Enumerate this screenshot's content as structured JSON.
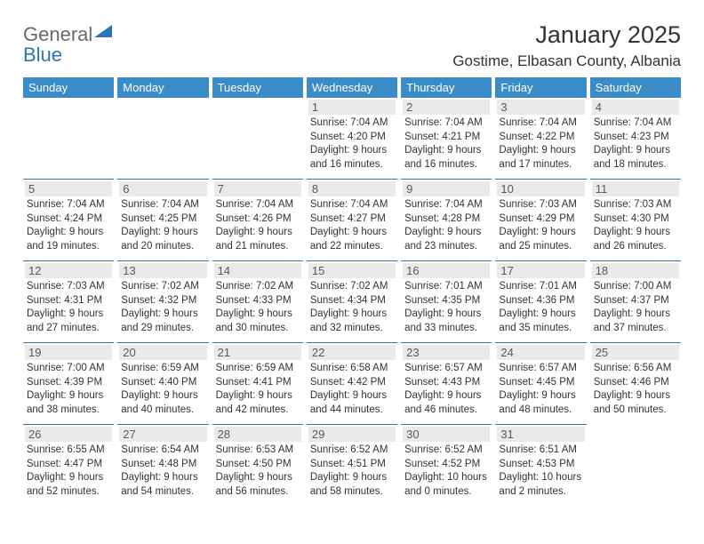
{
  "logo": {
    "word1": "General",
    "word2": "Blue",
    "color_gray": "#6a6a6a",
    "color_blue": "#2e75b6"
  },
  "title": "January 2025",
  "location": "Gostime, Elbasan County, Albania",
  "header_bg": "#3a8cc9",
  "header_text": "#ffffff",
  "rule_color": "#2e75b6",
  "daynum_bg": "#eaeaea",
  "daynum_color": "#5a5a5a",
  "body_color": "#333333",
  "days": [
    "Sunday",
    "Monday",
    "Tuesday",
    "Wednesday",
    "Thursday",
    "Friday",
    "Saturday"
  ],
  "cells": [
    {
      "n": "",
      "sunrise": "",
      "sunset": "",
      "daylight": ""
    },
    {
      "n": "",
      "sunrise": "",
      "sunset": "",
      "daylight": ""
    },
    {
      "n": "",
      "sunrise": "",
      "sunset": "",
      "daylight": ""
    },
    {
      "n": "1",
      "sunrise": "7:04 AM",
      "sunset": "4:20 PM",
      "daylight": "9 hours and 16 minutes."
    },
    {
      "n": "2",
      "sunrise": "7:04 AM",
      "sunset": "4:21 PM",
      "daylight": "9 hours and 16 minutes."
    },
    {
      "n": "3",
      "sunrise": "7:04 AM",
      "sunset": "4:22 PM",
      "daylight": "9 hours and 17 minutes."
    },
    {
      "n": "4",
      "sunrise": "7:04 AM",
      "sunset": "4:23 PM",
      "daylight": "9 hours and 18 minutes."
    },
    {
      "n": "5",
      "sunrise": "7:04 AM",
      "sunset": "4:24 PM",
      "daylight": "9 hours and 19 minutes."
    },
    {
      "n": "6",
      "sunrise": "7:04 AM",
      "sunset": "4:25 PM",
      "daylight": "9 hours and 20 minutes."
    },
    {
      "n": "7",
      "sunrise": "7:04 AM",
      "sunset": "4:26 PM",
      "daylight": "9 hours and 21 minutes."
    },
    {
      "n": "8",
      "sunrise": "7:04 AM",
      "sunset": "4:27 PM",
      "daylight": "9 hours and 22 minutes."
    },
    {
      "n": "9",
      "sunrise": "7:04 AM",
      "sunset": "4:28 PM",
      "daylight": "9 hours and 23 minutes."
    },
    {
      "n": "10",
      "sunrise": "7:03 AM",
      "sunset": "4:29 PM",
      "daylight": "9 hours and 25 minutes."
    },
    {
      "n": "11",
      "sunrise": "7:03 AM",
      "sunset": "4:30 PM",
      "daylight": "9 hours and 26 minutes."
    },
    {
      "n": "12",
      "sunrise": "7:03 AM",
      "sunset": "4:31 PM",
      "daylight": "9 hours and 27 minutes."
    },
    {
      "n": "13",
      "sunrise": "7:02 AM",
      "sunset": "4:32 PM",
      "daylight": "9 hours and 29 minutes."
    },
    {
      "n": "14",
      "sunrise": "7:02 AM",
      "sunset": "4:33 PM",
      "daylight": "9 hours and 30 minutes."
    },
    {
      "n": "15",
      "sunrise": "7:02 AM",
      "sunset": "4:34 PM",
      "daylight": "9 hours and 32 minutes."
    },
    {
      "n": "16",
      "sunrise": "7:01 AM",
      "sunset": "4:35 PM",
      "daylight": "9 hours and 33 minutes."
    },
    {
      "n": "17",
      "sunrise": "7:01 AM",
      "sunset": "4:36 PM",
      "daylight": "9 hours and 35 minutes."
    },
    {
      "n": "18",
      "sunrise": "7:00 AM",
      "sunset": "4:37 PM",
      "daylight": "9 hours and 37 minutes."
    },
    {
      "n": "19",
      "sunrise": "7:00 AM",
      "sunset": "4:39 PM",
      "daylight": "9 hours and 38 minutes."
    },
    {
      "n": "20",
      "sunrise": "6:59 AM",
      "sunset": "4:40 PM",
      "daylight": "9 hours and 40 minutes."
    },
    {
      "n": "21",
      "sunrise": "6:59 AM",
      "sunset": "4:41 PM",
      "daylight": "9 hours and 42 minutes."
    },
    {
      "n": "22",
      "sunrise": "6:58 AM",
      "sunset": "4:42 PM",
      "daylight": "9 hours and 44 minutes."
    },
    {
      "n": "23",
      "sunrise": "6:57 AM",
      "sunset": "4:43 PM",
      "daylight": "9 hours and 46 minutes."
    },
    {
      "n": "24",
      "sunrise": "6:57 AM",
      "sunset": "4:45 PM",
      "daylight": "9 hours and 48 minutes."
    },
    {
      "n": "25",
      "sunrise": "6:56 AM",
      "sunset": "4:46 PM",
      "daylight": "9 hours and 50 minutes."
    },
    {
      "n": "26",
      "sunrise": "6:55 AM",
      "sunset": "4:47 PM",
      "daylight": "9 hours and 52 minutes."
    },
    {
      "n": "27",
      "sunrise": "6:54 AM",
      "sunset": "4:48 PM",
      "daylight": "9 hours and 54 minutes."
    },
    {
      "n": "28",
      "sunrise": "6:53 AM",
      "sunset": "4:50 PM",
      "daylight": "9 hours and 56 minutes."
    },
    {
      "n": "29",
      "sunrise": "6:52 AM",
      "sunset": "4:51 PM",
      "daylight": "9 hours and 58 minutes."
    },
    {
      "n": "30",
      "sunrise": "6:52 AM",
      "sunset": "4:52 PM",
      "daylight": "10 hours and 0 minutes."
    },
    {
      "n": "31",
      "sunrise": "6:51 AM",
      "sunset": "4:53 PM",
      "daylight": "10 hours and 2 minutes."
    }
  ]
}
